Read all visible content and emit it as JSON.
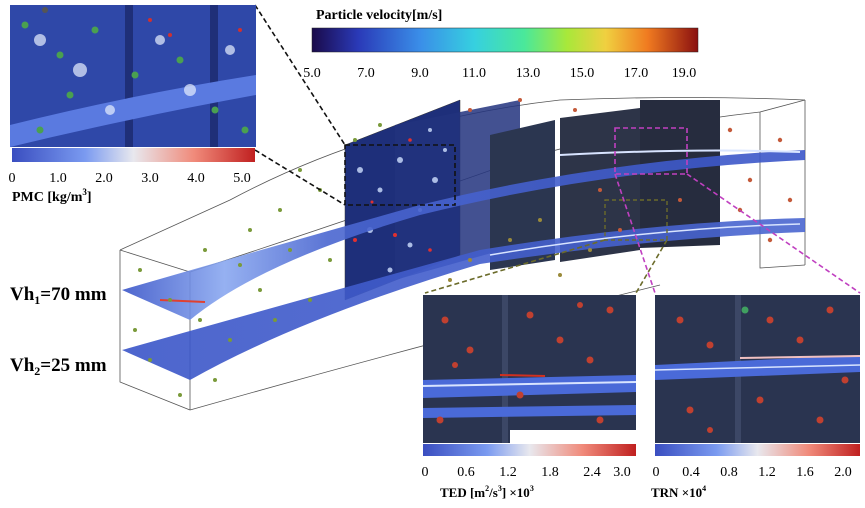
{
  "velocity_colorbar": {
    "title": "Particle velocity[m/s]",
    "ticks": [
      "5.0",
      "7.0",
      "9.0",
      "11.0",
      "13.0",
      "15.0",
      "17.0",
      "19.0"
    ]
  },
  "pmc_colorbar": {
    "label_main": "PMC [kg/m",
    "label_sup": "3",
    "label_end": "]",
    "ticks": [
      "0",
      "1.0",
      "2.0",
      "3.0",
      "4.0",
      "5.0"
    ]
  },
  "ted_colorbar": {
    "label_main": "TED [m",
    "label_sup1": "2",
    "label_mid": "/s",
    "label_sup2": "3",
    "label_mid2": "] ×10",
    "label_sup3": "3",
    "ticks": [
      "0",
      "0.6",
      "1.2",
      "1.8",
      "2.4",
      "3.0"
    ]
  },
  "trn_colorbar": {
    "label_main": "TRN ×10",
    "label_sup": "4",
    "ticks": [
      "0",
      "0.4",
      "0.8",
      "1.2",
      "1.6",
      "2.0"
    ]
  },
  "plane_labels": {
    "vh1_main": "Vh",
    "vh1_sub": "1",
    "vh1_value": "=70 mm",
    "vh2_main": "Vh",
    "vh2_sub": "2",
    "vh2_value": "=25 mm"
  },
  "colors": {
    "callout_black": "#111111",
    "callout_magenta": "#c040c0",
    "callout_olive": "#6b6b2a",
    "field_dark_blue": "#2a3a8a"
  }
}
